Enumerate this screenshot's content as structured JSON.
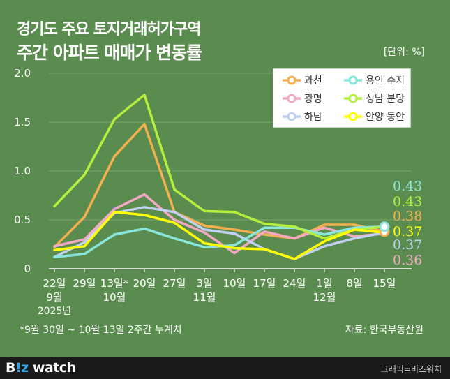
{
  "title": {
    "line1": "경기도 주요 토지거래허가구역",
    "line2": "주간 아파트 매매가 변동률"
  },
  "unit_label": "[단위: %]",
  "footnote": "*9월 30일 ~ 10월 13일 2주간 누계치",
  "source": "자료: 한국부동산원",
  "brand": {
    "b": "B",
    "iz": "!z",
    "rest": " watch"
  },
  "credit": "그래픽=비즈워치",
  "chart_data": {
    "type": "line",
    "x": [
      "22일",
      "29일",
      "13일*",
      "20일",
      "27일",
      "3일",
      "10일",
      "17일",
      "24일",
      "1일",
      "8일",
      "15일"
    ],
    "x_sub": [
      "9월",
      "",
      "10월",
      "",
      "",
      "11월",
      "",
      "",
      "",
      "12월",
      "",
      ""
    ],
    "x_sub2": [
      "2025년",
      "",
      "",
      "",
      "",
      "",
      "",
      "",
      "",
      "",
      "",
      ""
    ],
    "ylim": [
      0,
      2.0
    ],
    "yticks": [
      "0",
      "0.5",
      "1.0",
      "1.5",
      "2.0"
    ],
    "yticks_values": [
      0,
      0.5,
      1.0,
      1.5,
      2.0
    ],
    "grid": true,
    "legend_position": "top-right",
    "series": [
      {
        "name": "과천",
        "color": "#f4b04e",
        "values": [
          0.22,
          0.53,
          1.15,
          1.48,
          0.58,
          0.44,
          0.4,
          0.35,
          0.31,
          0.45,
          0.45,
          0.38
        ],
        "end_label": "0.38"
      },
      {
        "name": "광명",
        "color": "#f3a9c4",
        "values": [
          0.23,
          0.3,
          0.61,
          0.76,
          0.5,
          0.37,
          0.16,
          0.38,
          0.31,
          0.42,
          0.33,
          0.36
        ],
        "end_label": "0.36"
      },
      {
        "name": "하남",
        "color": "#c1cff2",
        "values": [
          0.12,
          0.27,
          0.57,
          0.63,
          0.58,
          0.4,
          0.36,
          0.2,
          0.1,
          0.23,
          0.31,
          0.37
        ],
        "end_label": "0.37"
      },
      {
        "name": "용인 수지",
        "color": "#8ae6dc",
        "values": [
          0.12,
          0.15,
          0.35,
          0.41,
          0.31,
          0.22,
          0.24,
          0.42,
          0.42,
          0.35,
          0.42,
          0.43
        ],
        "end_label": "0.43"
      },
      {
        "name": "성남 분당",
        "color": "#b6ee3e",
        "values": [
          0.64,
          0.96,
          1.53,
          1.78,
          0.81,
          0.59,
          0.58,
          0.46,
          0.43,
          0.31,
          0.4,
          0.43
        ],
        "end_label": "0.43"
      },
      {
        "name": "안양 동안",
        "color": "#ffff00",
        "values": [
          0.19,
          0.23,
          0.58,
          0.55,
          0.47,
          0.26,
          0.21,
          0.2,
          0.1,
          0.28,
          0.4,
          0.37
        ],
        "end_label": "0.37"
      }
    ]
  }
}
